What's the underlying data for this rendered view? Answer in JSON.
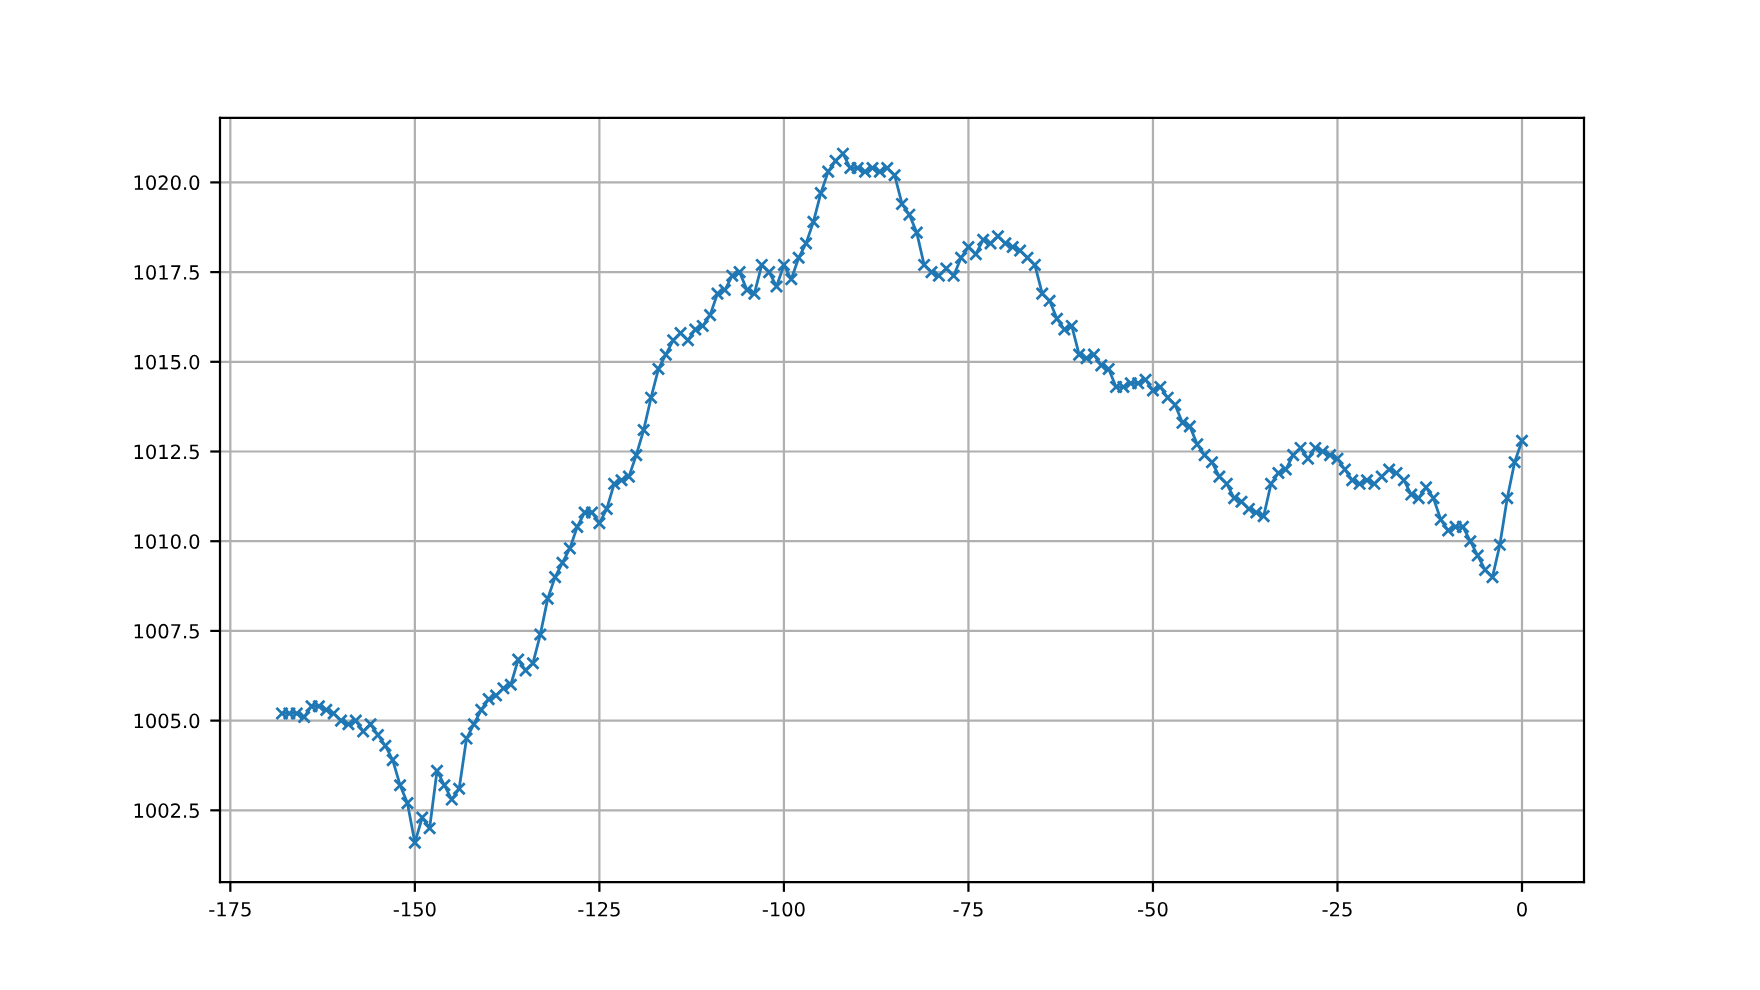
{
  "chart_data": {
    "type": "line",
    "marker": "cross",
    "grid": true,
    "x": [
      -168,
      -167,
      -166,
      -165,
      -164,
      -163,
      -162,
      -161,
      -160,
      -159,
      -158,
      -157,
      -156,
      -155,
      -154,
      -153,
      -152,
      -151,
      -150,
      -149,
      -148,
      -147,
      -146,
      -145,
      -144,
      -143,
      -142,
      -141,
      -140,
      -139,
      -138,
      -137,
      -136,
      -135,
      -134,
      -133,
      -132,
      -131,
      -130,
      -129,
      -128,
      -127,
      -126,
      -125,
      -124,
      -123,
      -122,
      -121,
      -120,
      -119,
      -118,
      -117,
      -116,
      -115,
      -114,
      -113,
      -112,
      -111,
      -110,
      -109,
      -108,
      -107,
      -106,
      -105,
      -104,
      -103,
      -102,
      -101,
      -100,
      -99,
      -98,
      -97,
      -96,
      -95,
      -94,
      -93,
      -92,
      -91,
      -90,
      -89,
      -88,
      -87,
      -86,
      -85,
      -84,
      -83,
      -82,
      -81,
      -80,
      -79,
      -78,
      -77,
      -76,
      -75,
      -74,
      -73,
      -72,
      -71,
      -70,
      -69,
      -68,
      -67,
      -66,
      -65,
      -64,
      -63,
      -62,
      -61,
      -60,
      -59,
      -58,
      -57,
      -56,
      -55,
      -54,
      -53,
      -52,
      -51,
      -50,
      -49,
      -48,
      -47,
      -46,
      -45,
      -44,
      -43,
      -42,
      -41,
      -40,
      -39,
      -38,
      -37,
      -36,
      -35,
      -34,
      -33,
      -32,
      -31,
      -30,
      -29,
      -28,
      -27,
      -26,
      -25,
      -24,
      -23,
      -22,
      -21,
      -20,
      -19,
      -18,
      -17,
      -16,
      -15,
      -14,
      -13,
      -12,
      -11,
      -10,
      -9,
      -8,
      -7,
      -6,
      -5,
      -4,
      -3,
      -2,
      -1,
      0
    ],
    "series": [
      {
        "color": "#1f77b4",
        "values": [
          1005.2,
          1005.2,
          1005.2,
          1005.1,
          1005.4,
          1005.4,
          1005.3,
          1005.2,
          1005.0,
          1004.9,
          1005.0,
          1004.7,
          1004.9,
          1004.6,
          1004.3,
          1003.9,
          1003.2,
          1002.7,
          1001.6,
          1002.3,
          1002.0,
          1003.6,
          1003.2,
          1002.8,
          1003.1,
          1004.5,
          1004.9,
          1005.3,
          1005.6,
          1005.7,
          1005.9,
          1006.0,
          1006.7,
          1006.4,
          1006.6,
          1007.4,
          1008.4,
          1009.0,
          1009.4,
          1009.8,
          1010.4,
          1010.8,
          1010.8,
          1010.5,
          1010.9,
          1011.6,
          1011.7,
          1011.8,
          1012.4,
          1013.1,
          1014.0,
          1014.8,
          1015.2,
          1015.6,
          1015.8,
          1015.6,
          1015.9,
          1016.0,
          1016.3,
          1016.9,
          1017.0,
          1017.4,
          1017.5,
          1017.0,
          1016.9,
          1017.7,
          1017.5,
          1017.1,
          1017.7,
          1017.3,
          1017.9,
          1018.3,
          1018.9,
          1019.7,
          1020.3,
          1020.6,
          1020.8,
          1020.4,
          1020.4,
          1020.3,
          1020.4,
          1020.3,
          1020.4,
          1020.2,
          1019.4,
          1019.1,
          1018.6,
          1017.7,
          1017.5,
          1017.4,
          1017.6,
          1017.4,
          1017.9,
          1018.2,
          1018.0,
          1018.4,
          1018.3,
          1018.5,
          1018.3,
          1018.2,
          1018.1,
          1017.9,
          1017.7,
          1016.9,
          1016.7,
          1016.2,
          1015.9,
          1016.0,
          1015.2,
          1015.1,
          1015.2,
          1014.9,
          1014.8,
          1014.3,
          1014.3,
          1014.4,
          1014.4,
          1014.5,
          1014.2,
          1014.3,
          1014.0,
          1013.8,
          1013.3,
          1013.2,
          1012.7,
          1012.4,
          1012.2,
          1011.8,
          1011.6,
          1011.2,
          1011.1,
          1010.9,
          1010.8,
          1010.7,
          1011.6,
          1011.9,
          1012.0,
          1012.4,
          1012.6,
          1012.3,
          1012.6,
          1012.5,
          1012.4,
          1012.3,
          1012.0,
          1011.7,
          1011.6,
          1011.7,
          1011.6,
          1011.8,
          1012.0,
          1011.9,
          1011.7,
          1011.3,
          1011.2,
          1011.5,
          1011.2,
          1010.6,
          1010.3,
          1010.4,
          1010.4,
          1010.0,
          1009.6,
          1009.2,
          1009.0,
          1009.9,
          1011.2,
          1012.2,
          1012.8
        ]
      }
    ],
    "xlim": [
      -176.4,
      8.4
    ],
    "ylim": [
      1000.5,
      1021.8
    ],
    "xticks": [
      -175,
      -150,
      -125,
      -100,
      -75,
      -50,
      -25,
      0
    ],
    "yticks": [
      1002.5,
      {
        "value": 1005,
        "label": "1005.0"
      },
      1007.5,
      {
        "value": 1010,
        "label": "1010.0"
      },
      1012.5,
      {
        "value": 1015,
        "label": "1015.0"
      },
      1017.5,
      {
        "value": 1020,
        "label": "1020.0"
      }
    ]
  }
}
